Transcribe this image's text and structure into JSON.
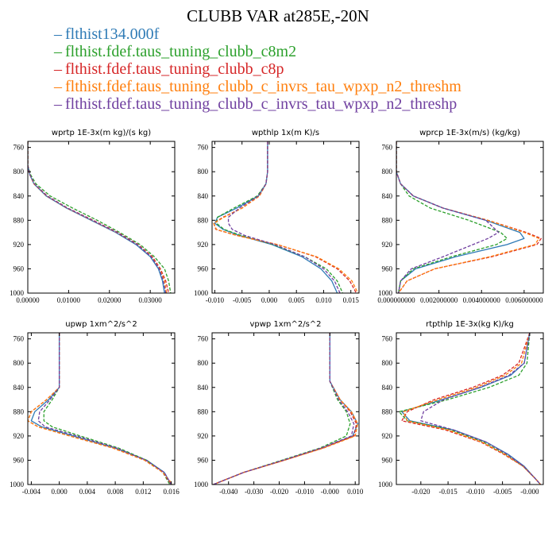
{
  "title": "CLUBB VAR at285E,-20N",
  "legend": [
    {
      "label": "flthist134.000f",
      "color": "#2f7bb6",
      "dash": "solid"
    },
    {
      "label": "flthist.fdef.taus_tuning_clubb_c8m2",
      "color": "#2ca02c",
      "dash": "dashed"
    },
    {
      "label": "flthist.fdef.taus_tuning_clubb_c8p",
      "color": "#d62728",
      "dash": "dashed"
    },
    {
      "label": "flthist.fdef.taus_tuning_clubb_c_invrs_tau_wpxp_n2_threshm",
      "color": "#ff7f0e",
      "dash": "dashed"
    },
    {
      "label": "flthist.fdef.taus_tuning_clubb_c_invrs_tau_wpxp_n2_threshp",
      "color": "#7040a0",
      "dash": "dashed"
    }
  ],
  "chart_data": [
    {
      "type": "line",
      "title": "wprtp  1E-3x(m kg)/(s kg)",
      "xlim": [
        0,
        0.036
      ],
      "ylim": [
        1000,
        750
      ],
      "xticks": [
        0,
        0.01,
        0.02,
        0.03
      ],
      "xtick_labels": [
        "0.00000",
        "0.01000",
        "0.02000",
        "0.03000"
      ],
      "yticks": [
        760,
        800,
        840,
        880,
        920,
        960,
        1000
      ],
      "y": [
        750,
        790,
        805,
        820,
        840,
        860,
        880,
        900,
        920,
        940,
        960,
        980,
        1000
      ],
      "series": [
        {
          "values": [
            0.0,
            0.0,
            0.0005,
            0.0015,
            0.0045,
            0.0095,
            0.0155,
            0.0215,
            0.0265,
            0.03,
            0.032,
            0.033,
            0.0335
          ]
        },
        {
          "values": [
            0.0,
            0.0,
            0.0007,
            0.002,
            0.0055,
            0.011,
            0.017,
            0.0225,
            0.0275,
            0.031,
            0.0335,
            0.0345,
            0.035
          ]
        },
        {
          "values": [
            0.0,
            0.0,
            0.0005,
            0.0016,
            0.0048,
            0.0098,
            0.016,
            0.022,
            0.027,
            0.0305,
            0.0325,
            0.0338,
            0.0345
          ]
        },
        {
          "values": [
            0.0,
            0.0,
            0.0005,
            0.0015,
            0.0046,
            0.0096,
            0.0157,
            0.0217,
            0.0268,
            0.0303,
            0.0323,
            0.0335,
            0.034
          ]
        },
        {
          "values": [
            0.0,
            0.0,
            0.0005,
            0.0016,
            0.0047,
            0.0097,
            0.0158,
            0.0218,
            0.0268,
            0.0302,
            0.0322,
            0.0332,
            0.0338
          ]
        }
      ]
    },
    {
      "type": "line",
      "title": "wpthlp  1x(m K)/s",
      "xlim": [
        -0.0105,
        0.0165
      ],
      "ylim": [
        1000,
        750
      ],
      "xticks": [
        -0.01,
        -0.005,
        0.0,
        0.005,
        0.01,
        0.015
      ],
      "xtick_labels": [
        "-0.010",
        "-0.005",
        "0.000",
        "0.005",
        "0.010",
        "0.015"
      ],
      "yticks": [
        760,
        800,
        840,
        880,
        920,
        960,
        1000
      ],
      "y": [
        750,
        800,
        820,
        840,
        860,
        875,
        885,
        895,
        905,
        920,
        940,
        960,
        980,
        1000
      ],
      "series": [
        {
          "values": [
            -0.0003,
            -0.0003,
            -0.0006,
            -0.002,
            -0.006,
            -0.0095,
            -0.01,
            -0.0085,
            -0.0055,
            0.0005,
            0.006,
            0.0095,
            0.0115,
            0.0125
          ]
        },
        {
          "values": [
            -0.0003,
            -0.0003,
            -0.0006,
            -0.0022,
            -0.0065,
            -0.0095,
            -0.0097,
            -0.0083,
            -0.0052,
            0.0007,
            0.0065,
            0.0105,
            0.0125,
            0.0135
          ]
        },
        {
          "values": [
            -0.0003,
            -0.0003,
            -0.0006,
            -0.0018,
            -0.005,
            -0.0085,
            -0.0102,
            -0.0098,
            -0.006,
            0.0015,
            0.0085,
            0.0125,
            0.0148,
            0.016
          ]
        },
        {
          "values": [
            -0.0003,
            -0.0003,
            -0.0006,
            -0.0018,
            -0.005,
            -0.0083,
            -0.0102,
            -0.0097,
            -0.006,
            0.0015,
            0.0087,
            0.0128,
            0.0152,
            0.0163
          ]
        },
        {
          "values": [
            -0.0003,
            -0.0003,
            -0.0006,
            -0.002,
            -0.0055,
            -0.0075,
            -0.0075,
            -0.0068,
            -0.0045,
            0.001,
            0.0065,
            0.01,
            0.012,
            0.013
          ]
        }
      ]
    },
    {
      "type": "line",
      "title": "wprcp  1E-3x(m/s) (kg/kg)",
      "xlim": [
        0,
        0.0069
      ],
      "ylim": [
        1000,
        750
      ],
      "xticks": [
        0,
        0.002,
        0.004,
        0.006
      ],
      "xtick_labels": [
        "0.000000000",
        "0.002000000",
        "0.004000000",
        "0.006000000"
      ],
      "yticks": [
        760,
        800,
        840,
        880,
        920,
        960,
        1000
      ],
      "y": [
        750,
        800,
        820,
        840,
        860,
        880,
        900,
        910,
        920,
        940,
        960,
        980,
        1000
      ],
      "series": [
        {
          "values": [
            0.0,
            0.0,
            0.0002,
            0.0008,
            0.0022,
            0.0042,
            0.0058,
            0.006,
            0.0052,
            0.0028,
            0.0009,
            0.0002,
            0.0001
          ]
        },
        {
          "values": [
            0.0,
            0.0,
            0.0002,
            0.0006,
            0.0016,
            0.0034,
            0.0049,
            0.0052,
            0.0047,
            0.0026,
            0.0008,
            0.0002,
            0.0001
          ]
        },
        {
          "values": [
            0.0,
            0.0,
            0.0002,
            0.0008,
            0.0022,
            0.0043,
            0.0061,
            0.0068,
            0.0066,
            0.0045,
            0.0018,
            0.0005,
            0.0001
          ]
        },
        {
          "values": [
            0.0,
            0.0,
            0.0002,
            0.0008,
            0.0022,
            0.0043,
            0.006,
            0.0067,
            0.0065,
            0.0044,
            0.0018,
            0.0005,
            0.0001
          ]
        },
        {
          "values": [
            0.0,
            0.0,
            0.0002,
            0.0008,
            0.0022,
            0.0042,
            0.0048,
            0.0043,
            0.0036,
            0.0022,
            0.0007,
            0.0002,
            0.0001
          ]
        }
      ]
    },
    {
      "type": "line",
      "title": "upwp  1xm^2/s^2",
      "xlim": [
        -0.0045,
        0.0165
      ],
      "ylim": [
        1000,
        750
      ],
      "xticks": [
        -0.004,
        0.0,
        0.004,
        0.008,
        0.012,
        0.016
      ],
      "xtick_labels": [
        "-0.004",
        "0.000",
        "0.004",
        "0.008",
        "0.012",
        "0.016"
      ],
      "yticks": [
        760,
        800,
        840,
        880,
        920,
        960,
        1000
      ],
      "y": [
        750,
        840,
        860,
        880,
        895,
        905,
        920,
        940,
        960,
        980,
        1000
      ],
      "series": [
        {
          "values": [
            0.0,
            0.0,
            -0.0015,
            -0.0035,
            -0.004,
            -0.0025,
            0.002,
            0.008,
            0.0125,
            0.015,
            0.016
          ]
        },
        {
          "values": [
            0.0,
            0.0,
            -0.001,
            -0.0022,
            -0.0022,
            -0.001,
            0.003,
            0.0085,
            0.0125,
            0.0148,
            0.0158
          ]
        },
        {
          "values": [
            0.0,
            0.0,
            -0.0018,
            -0.004,
            -0.0045,
            -0.003,
            0.0015,
            0.0077,
            0.0122,
            0.0148,
            0.016
          ]
        },
        {
          "values": [
            0.0,
            0.0,
            -0.0018,
            -0.004,
            -0.0045,
            -0.003,
            0.0015,
            0.0077,
            0.0122,
            0.0148,
            0.0162
          ]
        },
        {
          "values": [
            0.0,
            0.0,
            -0.0013,
            -0.0028,
            -0.003,
            -0.002,
            0.0025,
            0.0082,
            0.0124,
            0.015,
            0.016
          ]
        }
      ]
    },
    {
      "type": "line",
      "title": "vpwp  1xm^2/s^2",
      "xlim": [
        -0.0465,
        0.0115
      ],
      "ylim": [
        1000,
        750
      ],
      "xticks": [
        -0.04,
        -0.03,
        -0.02,
        -0.01,
        0.0,
        0.01
      ],
      "xtick_labels": [
        "-0.040",
        "-0.030",
        "-0.020",
        "-0.010",
        "-0.000",
        "0.010"
      ],
      "yticks": [
        760,
        800,
        840,
        880,
        920,
        960,
        1000
      ],
      "y": [
        750,
        830,
        860,
        880,
        900,
        920,
        940,
        960,
        980,
        1000
      ],
      "series": [
        {
          "values": [
            0.0,
            0.0,
            0.004,
            0.0085,
            0.011,
            0.009,
            -0.003,
            -0.018,
            -0.034,
            -0.046
          ]
        },
        {
          "values": [
            0.0,
            0.0,
            0.003,
            0.0065,
            0.008,
            0.0065,
            -0.004,
            -0.019,
            -0.034,
            -0.046
          ]
        },
        {
          "values": [
            0.0,
            0.0,
            0.004,
            0.008,
            0.0105,
            0.0095,
            -0.003,
            -0.018,
            -0.034,
            -0.046
          ]
        },
        {
          "values": [
            0.0,
            0.0,
            0.004,
            0.0085,
            0.011,
            0.01,
            -0.0025,
            -0.018,
            -0.034,
            -0.046
          ]
        },
        {
          "values": [
            0.0,
            0.0,
            0.0035,
            0.007,
            0.0095,
            0.0085,
            -0.0035,
            -0.0185,
            -0.034,
            -0.046
          ]
        }
      ]
    },
    {
      "type": "line",
      "title": "rtpthlp  1E-3x(kg K)/kg",
      "xlim": [
        -0.0245,
        0.0025
      ],
      "ylim": [
        1000,
        750
      ],
      "xticks": [
        -0.02,
        -0.015,
        -0.01,
        -0.005,
        0.0
      ],
      "xtick_labels": [
        "-0.020",
        "-0.015",
        "-0.010",
        "-0.005",
        "-0.000"
      ],
      "yticks": [
        760,
        800,
        840,
        880,
        920,
        960,
        1000
      ],
      "y": [
        750,
        800,
        820,
        840,
        860,
        880,
        895,
        910,
        930,
        950,
        970,
        990,
        1000
      ],
      "series": [
        {
          "values": [
            0.0,
            -0.001,
            -0.0035,
            -0.009,
            -0.016,
            -0.0235,
            -0.022,
            -0.014,
            -0.008,
            -0.004,
            -0.001,
            0.001,
            0.002
          ]
        },
        {
          "values": [
            0.0,
            -0.0005,
            -0.002,
            -0.0075,
            -0.015,
            -0.024,
            -0.0225,
            -0.0145,
            -0.0085,
            -0.0045,
            -0.0012,
            0.001,
            0.002
          ]
        },
        {
          "values": [
            0.0,
            -0.002,
            -0.005,
            -0.0105,
            -0.0175,
            -0.0225,
            -0.0235,
            -0.0155,
            -0.009,
            -0.0048,
            -0.0012,
            0.001,
            0.002
          ]
        },
        {
          "values": [
            0.0,
            -0.0015,
            -0.0045,
            -0.0098,
            -0.0168,
            -0.0232,
            -0.0225,
            -0.015,
            -0.0088,
            -0.0046,
            -0.0012,
            0.001,
            0.002
          ]
        },
        {
          "values": [
            0.0,
            -0.001,
            -0.0038,
            -0.0092,
            -0.0158,
            -0.0195,
            -0.02,
            -0.014,
            -0.008,
            -0.0042,
            -0.0011,
            0.001,
            0.002
          ]
        }
      ]
    }
  ]
}
